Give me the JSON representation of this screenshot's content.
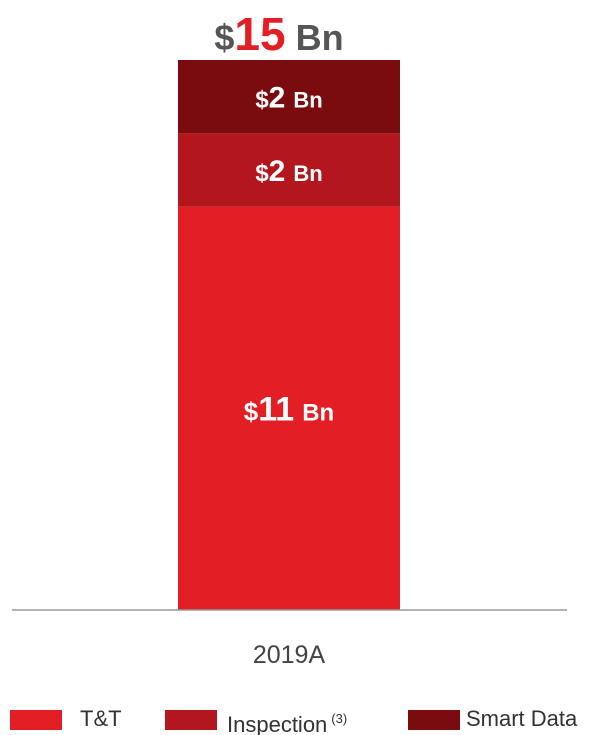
{
  "chart_data": {
    "type": "bar",
    "stacked": true,
    "categories": [
      "2019A"
    ],
    "series": [
      {
        "name": "T&T",
        "values": [
          11
        ],
        "color": "#e31e24",
        "label": "11"
      },
      {
        "name": "Inspection",
        "name_sup": "(3)",
        "values": [
          2
        ],
        "color": "#b3161c",
        "label": "2"
      },
      {
        "name": "Smart Data",
        "values": [
          2
        ],
        "color": "#7a0c10",
        "label": "2"
      }
    ],
    "total": {
      "value": 15,
      "prefix": "$",
      "number": "15",
      "suffix": "Bn"
    },
    "label_prefix": "$",
    "label_suffix": "Bn",
    "ylim": [
      0,
      15
    ],
    "grid": false,
    "legend_position": "bottom",
    "colors": {
      "total_number": "#e31e24",
      "total_text": "#555555",
      "baseline": "#999999"
    }
  }
}
